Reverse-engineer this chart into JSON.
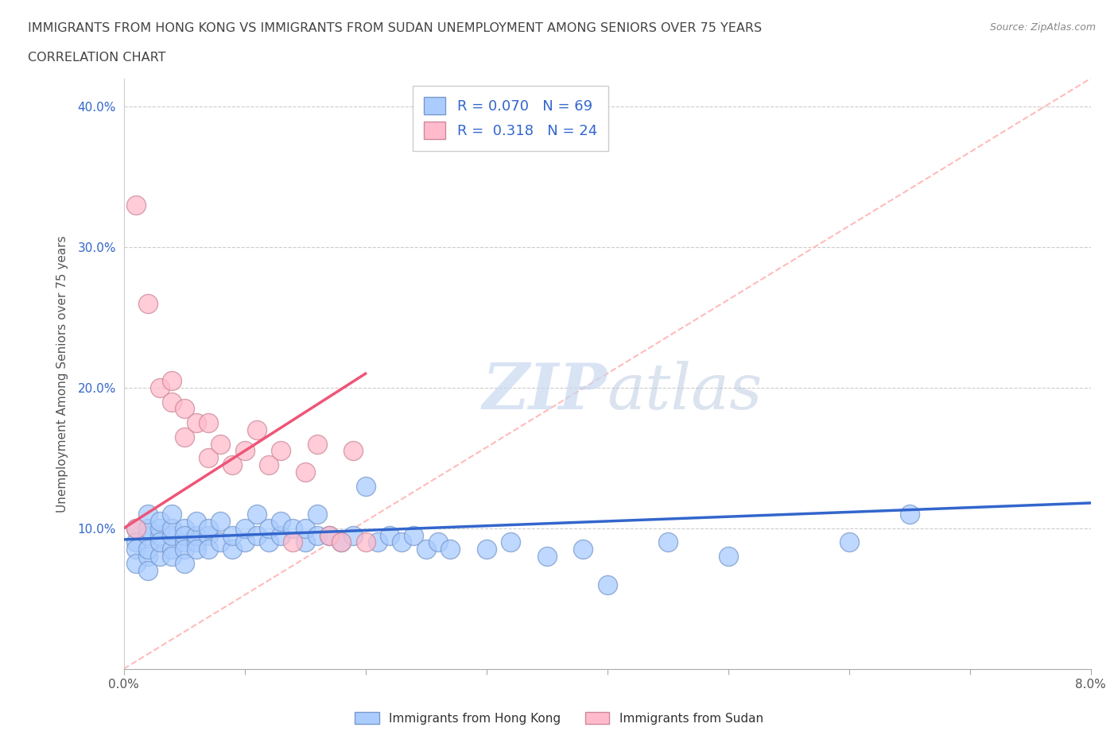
{
  "title_line1": "IMMIGRANTS FROM HONG KONG VS IMMIGRANTS FROM SUDAN UNEMPLOYMENT AMONG SENIORS OVER 75 YEARS",
  "title_line2": "CORRELATION CHART",
  "source": "Source: ZipAtlas.com",
  "ylabel": "Unemployment Among Seniors over 75 years",
  "xlim": [
    0.0,
    0.08
  ],
  "ylim": [
    0.0,
    0.42
  ],
  "xticks": [
    0.0,
    0.01,
    0.02,
    0.03,
    0.04,
    0.05,
    0.06,
    0.07,
    0.08
  ],
  "yticks": [
    0.1,
    0.2,
    0.3,
    0.4
  ],
  "ytick_labels": [
    "10.0%",
    "20.0%",
    "30.0%",
    "40.0%"
  ],
  "xtick_labels": [
    "0.0%",
    "",
    "",
    "",
    "",
    "",
    "",
    "",
    "8.0%"
  ],
  "hk_color": "#aaccff",
  "sudan_color": "#ffbbcc",
  "hk_edge_color": "#7799cc",
  "sudan_edge_color": "#cc8899",
  "hk_trend_color": "#3366cc",
  "sudan_trend_color": "#ee5577",
  "diag_color": "#ffbbbb",
  "R_hk": 0.07,
  "N_hk": 69,
  "R_sudan": 0.318,
  "N_sudan": 24,
  "background_color": "#ffffff",
  "title_color": "#444444",
  "axis_color": "#aaaaaa",
  "legend_label_hk": "Immigrants from Hong Kong",
  "legend_label_sudan": "Immigrants from Sudan",
  "hk_scatter_x": [
    0.001,
    0.001,
    0.001,
    0.001,
    0.002,
    0.002,
    0.002,
    0.002,
    0.002,
    0.002,
    0.003,
    0.003,
    0.003,
    0.003,
    0.003,
    0.004,
    0.004,
    0.004,
    0.004,
    0.004,
    0.005,
    0.005,
    0.005,
    0.005,
    0.005,
    0.006,
    0.006,
    0.006,
    0.006,
    0.007,
    0.007,
    0.007,
    0.008,
    0.008,
    0.009,
    0.009,
    0.01,
    0.01,
    0.011,
    0.011,
    0.012,
    0.012,
    0.013,
    0.013,
    0.014,
    0.015,
    0.015,
    0.016,
    0.016,
    0.017,
    0.018,
    0.019,
    0.02,
    0.021,
    0.022,
    0.023,
    0.024,
    0.025,
    0.026,
    0.027,
    0.03,
    0.032,
    0.035,
    0.038,
    0.04,
    0.045,
    0.05,
    0.06,
    0.065
  ],
  "hk_scatter_y": [
    0.1,
    0.09,
    0.085,
    0.075,
    0.095,
    0.08,
    0.1,
    0.11,
    0.085,
    0.07,
    0.095,
    0.08,
    0.1,
    0.105,
    0.09,
    0.085,
    0.095,
    0.1,
    0.11,
    0.08,
    0.09,
    0.1,
    0.095,
    0.085,
    0.075,
    0.09,
    0.095,
    0.105,
    0.085,
    0.095,
    0.085,
    0.1,
    0.09,
    0.105,
    0.085,
    0.095,
    0.09,
    0.1,
    0.095,
    0.11,
    0.09,
    0.1,
    0.095,
    0.105,
    0.1,
    0.09,
    0.1,
    0.095,
    0.11,
    0.095,
    0.09,
    0.095,
    0.13,
    0.09,
    0.095,
    0.09,
    0.095,
    0.085,
    0.09,
    0.085,
    0.085,
    0.09,
    0.08,
    0.085,
    0.06,
    0.09,
    0.08,
    0.09,
    0.11
  ],
  "sudan_scatter_x": [
    0.001,
    0.001,
    0.002,
    0.003,
    0.004,
    0.004,
    0.005,
    0.005,
    0.006,
    0.007,
    0.007,
    0.008,
    0.009,
    0.01,
    0.011,
    0.012,
    0.013,
    0.014,
    0.015,
    0.016,
    0.017,
    0.018,
    0.019,
    0.02
  ],
  "sudan_scatter_y": [
    0.1,
    0.33,
    0.26,
    0.2,
    0.19,
    0.205,
    0.185,
    0.165,
    0.175,
    0.15,
    0.175,
    0.16,
    0.145,
    0.155,
    0.17,
    0.145,
    0.155,
    0.09,
    0.14,
    0.16,
    0.095,
    0.09,
    0.155,
    0.09
  ],
  "hk_trend_x": [
    0.0,
    0.08
  ],
  "hk_trend_y": [
    0.092,
    0.118
  ],
  "sudan_trend_x": [
    0.0,
    0.02
  ],
  "sudan_trend_y": [
    0.1,
    0.21
  ]
}
